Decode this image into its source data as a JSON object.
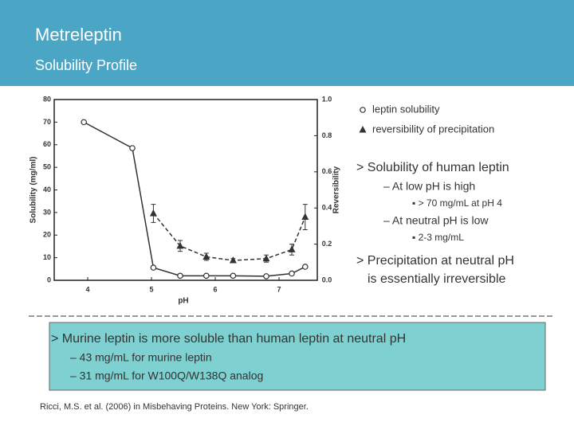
{
  "header": {
    "title": "Metreleptin",
    "subtitle": "Solubility Profile"
  },
  "chart_data": {
    "type": "line",
    "x_label": "pH",
    "y_label": "Solubility (mg/ml)",
    "y2_label": "Reversibility",
    "xlim": [
      3.475,
      7.6
    ],
    "xticks": [
      4,
      5,
      6,
      7
    ],
    "ylim": [
      0,
      80
    ],
    "yticks": [
      0,
      10,
      20,
      30,
      40,
      50,
      60,
      70,
      80
    ],
    "y2lim": [
      0,
      1
    ],
    "y2ticks": [
      {
        "value": 0,
        "label": "0.0"
      },
      0.2,
      0.4,
      0.6,
      0.8,
      {
        "value": 1,
        "label": "1.0"
      }
    ],
    "series": [
      {
        "name": "leptin solubility",
        "color": "#333333",
        "marker": "circle",
        "linestyle": "solid",
        "x": [
          3.94,
          4.7,
          5.03,
          5.45,
          5.86,
          6.28,
          6.8,
          7.2,
          7.41
        ],
        "values": [
          70,
          58.5,
          5.6,
          2,
          2,
          2,
          1.8,
          3,
          6
        ]
      },
      {
        "name": "reversibility of precipitation",
        "color": "#333333",
        "marker": "triangle",
        "linestyle": "dashed",
        "axis": "y2",
        "x": [
          5.03,
          5.45,
          5.86,
          6.28,
          6.8,
          7.2,
          7.41
        ],
        "values": [
          0.37,
          0.19,
          0.13,
          0.11,
          0.12,
          0.17,
          0.35
        ],
        "errors": [
          0.05,
          0.03,
          0.02,
          0.01,
          0.02,
          0.03,
          0.07
        ]
      }
    ]
  },
  "bullets": [
    {
      "text": "> Solubility of human leptin",
      "level": 1
    },
    {
      "text": "– At low pH is high",
      "level": 2
    },
    {
      "text": "▪ > 70 mg/mL at pH 4",
      "level": 3
    },
    {
      "text": "– At neutral pH is low",
      "level": 2
    },
    {
      "text": "▪ 2-3 mg/mL",
      "level": 3
    },
    {
      "text": "> Precipitation at neutral pH",
      "level": 1
    },
    {
      "text": "is essentially irreversible",
      "level": 1
    }
  ],
  "box": {
    "items": [
      {
        "text": "> Murine leptin is more soluble than human leptin at neutral pH",
        "level": 1
      },
      {
        "text": "– 43 mg/mL for murine leptin",
        "level": 2
      },
      {
        "text": "– 31 mg/mL for W100Q/W138Q analog",
        "level": 2
      }
    ]
  },
  "citation": "Ricci, M.S. et al. (2006) in Misbehaving Proteins. New York: Springer."
}
